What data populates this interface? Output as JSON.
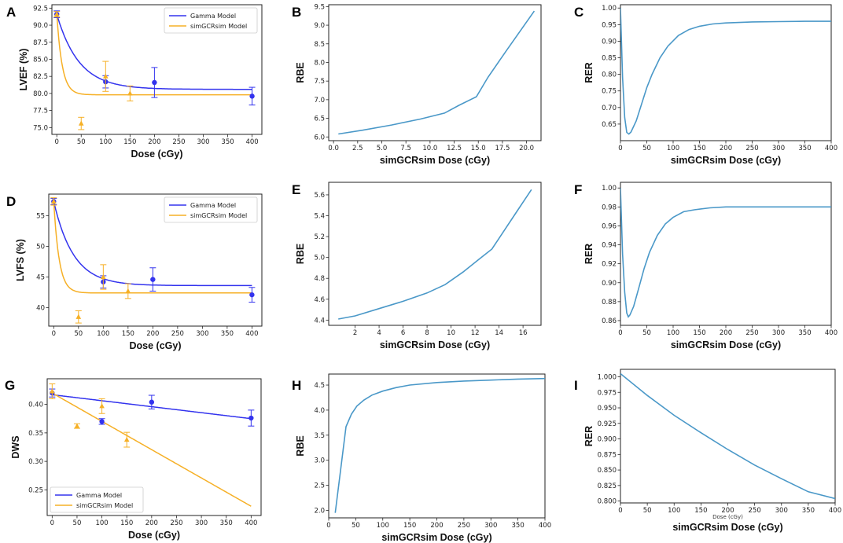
{
  "colors": {
    "gamma": "#3333ee",
    "sim": "#f6b026",
    "rbe": "#4a98c8",
    "axis": "#222222"
  },
  "chart_data": [
    {
      "panel": "A",
      "type": "scatter_fit",
      "xlabel": "Dose (cGy)",
      "ylabel": "LVEF (%)",
      "xlim": [
        -10,
        420
      ],
      "ylim": [
        74,
        93
      ],
      "xticks": [
        0,
        50,
        100,
        150,
        200,
        250,
        300,
        350,
        400
      ],
      "yticks": [
        75.0,
        77.5,
        80.0,
        82.5,
        85.0,
        87.5,
        90.0,
        92.5
      ],
      "ytick_decimals": 1,
      "legend": {
        "position": "top-right",
        "entries": [
          "Gamma Model",
          "simGCRsim Model"
        ]
      },
      "series": [
        {
          "name": "Gamma Model",
          "kind": "exp",
          "y0": 91.6,
          "yinf": 80.6,
          "k": 0.022,
          "points": [
            {
              "x": 0,
              "y": 91.6,
              "err": 0.5
            },
            {
              "x": 100,
              "y": 81.7,
              "err": 0.9
            },
            {
              "x": 200,
              "y": 81.6,
              "err": 2.2
            },
            {
              "x": 400,
              "y": 79.6,
              "err": 1.3
            }
          ]
        },
        {
          "name": "simGCRsim Model",
          "kind": "exp",
          "y0": 91.6,
          "yinf": 79.8,
          "k": 0.09,
          "points": [
            {
              "x": 0,
              "y": 91.6,
              "err": 0.4
            },
            {
              "x": 50,
              "y": 75.6,
              "err": 0.9
            },
            {
              "x": 100,
              "y": 82.5,
              "err": 2.2
            },
            {
              "x": 150,
              "y": 80.0,
              "err": 1.1
            }
          ]
        }
      ]
    },
    {
      "panel": "B",
      "type": "line",
      "xlabel": "simGCRsim Dose (cGy)",
      "ylabel": "RBE",
      "xlim": [
        -0.5,
        21.5
      ],
      "ylim": [
        5.9,
        9.55
      ],
      "xticks": [
        0.0,
        2.5,
        5.0,
        7.5,
        10.0,
        12.5,
        15.0,
        17.5,
        20.0
      ],
      "xtick_decimals": 1,
      "yticks": [
        6.0,
        6.5,
        7.0,
        7.5,
        8.0,
        8.5,
        9.0,
        9.5
      ],
      "ytick_decimals": 1,
      "series": [
        {
          "name": "RBE",
          "x": [
            0.5,
            3,
            6,
            9,
            11.5,
            13,
            14.8,
            16,
            18,
            20.8
          ],
          "y": [
            6.08,
            6.18,
            6.32,
            6.48,
            6.64,
            6.85,
            7.08,
            7.6,
            8.35,
            9.38
          ]
        }
      ]
    },
    {
      "panel": "C",
      "type": "line",
      "xlabel": "simGCRsim Dose (cGy)",
      "ylabel": "RER",
      "xlim": [
        0,
        400
      ],
      "ylim": [
        0.6,
        1.01
      ],
      "xticks": [
        0,
        50,
        100,
        150,
        200,
        250,
        300,
        350,
        400
      ],
      "yticks": [
        0.65,
        0.7,
        0.75,
        0.8,
        0.85,
        0.9,
        0.95,
        1.0
      ],
      "ytick_decimals": 2,
      "series": [
        {
          "name": "RER",
          "x": [
            0,
            4,
            8,
            12,
            16,
            20,
            30,
            40,
            50,
            60,
            75,
            90,
            110,
            130,
            150,
            175,
            200,
            250,
            300,
            350,
            400
          ],
          "y": [
            1.0,
            0.79,
            0.67,
            0.625,
            0.62,
            0.626,
            0.66,
            0.71,
            0.76,
            0.8,
            0.85,
            0.885,
            0.917,
            0.935,
            0.945,
            0.952,
            0.955,
            0.958,
            0.959,
            0.96,
            0.96
          ]
        }
      ]
    },
    {
      "panel": "D",
      "type": "scatter_fit",
      "xlabel": "Dose (cGy)",
      "ylabel": "LVFS (%)",
      "xlim": [
        -10,
        420
      ],
      "ylim": [
        37,
        58.5
      ],
      "xticks": [
        0,
        50,
        100,
        150,
        200,
        250,
        300,
        350,
        400
      ],
      "yticks": [
        40,
        45,
        50,
        55
      ],
      "ytick_decimals": 0,
      "legend": {
        "position": "top-right",
        "entries": [
          "Gamma Model",
          "simGCRsim Model"
        ]
      },
      "series": [
        {
          "name": "Gamma Model",
          "kind": "exp",
          "y0": 57.3,
          "yinf": 43.6,
          "k": 0.025,
          "points": [
            {
              "x": 0,
              "y": 57.3,
              "err": 0.5
            },
            {
              "x": 100,
              "y": 44.2,
              "err": 1.0
            },
            {
              "x": 200,
              "y": 44.6,
              "err": 1.9
            },
            {
              "x": 400,
              "y": 42.1,
              "err": 1.2
            }
          ]
        },
        {
          "name": "simGCRsim Model",
          "kind": "exp",
          "y0": 57.3,
          "yinf": 42.4,
          "k": 0.09,
          "points": [
            {
              "x": 0,
              "y": 57.3,
              "err": 0.6
            },
            {
              "x": 50,
              "y": 38.5,
              "err": 1.0
            },
            {
              "x": 100,
              "y": 45.0,
              "err": 2.0
            },
            {
              "x": 150,
              "y": 42.7,
              "err": 1.2
            }
          ]
        }
      ]
    },
    {
      "panel": "E",
      "type": "line",
      "xlabel": "simGCRsim Dose (cGy)",
      "ylabel": "RBE",
      "xlim": [
        -0.2,
        17.5
      ],
      "ylim": [
        4.35,
        5.72
      ],
      "xticks": [
        2,
        4,
        6,
        8,
        10,
        12,
        14,
        16
      ],
      "xtick_decimals": 0,
      "yticks": [
        4.4,
        4.6,
        4.8,
        5.0,
        5.2,
        5.4,
        5.6
      ],
      "ytick_decimals": 1,
      "series": [
        {
          "name": "RBE",
          "x": [
            0.6,
            2,
            4,
            6,
            8,
            9.5,
            11,
            12.3,
            13.4,
            14.5,
            15.6,
            16.7
          ],
          "y": [
            4.41,
            4.44,
            4.51,
            4.58,
            4.66,
            4.74,
            4.86,
            4.98,
            5.08,
            5.27,
            5.46,
            5.65
          ]
        }
      ]
    },
    {
      "panel": "F",
      "type": "line",
      "xlabel": "simGCRsim Dose (cGy)",
      "ylabel": "RER",
      "xlim": [
        0,
        400
      ],
      "ylim": [
        0.855,
        1.006
      ],
      "xticks": [
        0,
        50,
        100,
        150,
        200,
        250,
        300,
        350,
        400
      ],
      "yticks": [
        0.86,
        0.88,
        0.9,
        0.92,
        0.94,
        0.96,
        0.98,
        1.0
      ],
      "ytick_decimals": 2,
      "series": [
        {
          "name": "RER",
          "x": [
            0,
            4,
            8,
            12,
            15,
            18,
            25,
            35,
            45,
            55,
            70,
            85,
            100,
            120,
            140,
            170,
            200,
            250,
            300,
            350,
            400
          ],
          "y": [
            1.0,
            0.93,
            0.89,
            0.868,
            0.864,
            0.866,
            0.875,
            0.895,
            0.915,
            0.932,
            0.95,
            0.962,
            0.969,
            0.975,
            0.977,
            0.979,
            0.98,
            0.98,
            0.98,
            0.98,
            0.98
          ]
        }
      ]
    },
    {
      "panel": "G",
      "type": "scatter_fit",
      "xlabel": "Dose (cGy)",
      "ylabel": "DWS",
      "xlim": [
        -10,
        420
      ],
      "ylim": [
        0.205,
        0.445
      ],
      "xticks": [
        0,
        50,
        100,
        150,
        200,
        250,
        300,
        350,
        400
      ],
      "yticks": [
        0.25,
        0.3,
        0.35,
        0.4
      ],
      "ytick_decimals": 2,
      "legend": {
        "position": "bottom-left",
        "entries": [
          "Gamma Model",
          "simGCRsim Model"
        ]
      },
      "series": [
        {
          "name": "Gamma Model",
          "kind": "linear",
          "y0": 0.417,
          "slope": -0.000105,
          "points": [
            {
              "x": 0,
              "y": 0.42,
              "err": 0.007
            },
            {
              "x": 100,
              "y": 0.37,
              "err": 0.005
            },
            {
              "x": 200,
              "y": 0.404,
              "err": 0.012
            },
            {
              "x": 400,
              "y": 0.376,
              "err": 0.014
            }
          ]
        },
        {
          "name": "simGCRsim Model",
          "kind": "linear",
          "y0": 0.42,
          "slope": -0.000497,
          "points": [
            {
              "x": 0,
              "y": 0.423,
              "err": 0.013
            },
            {
              "x": 50,
              "y": 0.362,
              "err": 0.004
            },
            {
              "x": 100,
              "y": 0.397,
              "err": 0.013
            },
            {
              "x": 150,
              "y": 0.338,
              "err": 0.013
            }
          ]
        }
      ]
    },
    {
      "panel": "H",
      "type": "line",
      "xlabel": "simGCRsim Dose (cGy)",
      "ylabel": "RBE",
      "xlim": [
        0,
        400
      ],
      "ylim": [
        1.85,
        4.72
      ],
      "xticks": [
        0,
        50,
        100,
        150,
        200,
        250,
        300,
        350,
        400
      ],
      "yticks": [
        2.0,
        2.5,
        3.0,
        3.5,
        4.0,
        4.5
      ],
      "ytick_decimals": 1,
      "series": [
        {
          "name": "RBE",
          "x": [
            12,
            22,
            32,
            42,
            52,
            65,
            80,
            100,
            125,
            150,
            200,
            250,
            300,
            350,
            400
          ],
          "y": [
            1.95,
            2.8,
            3.67,
            3.92,
            4.08,
            4.2,
            4.3,
            4.38,
            4.45,
            4.5,
            4.55,
            4.58,
            4.6,
            4.62,
            4.63
          ]
        }
      ]
    },
    {
      "panel": "I",
      "type": "line",
      "xlabel": "simGCRsim Dose (cGy)",
      "inner_xlabel": "Dose (cGy)",
      "ylabel": "RER",
      "xlim": [
        0,
        400
      ],
      "ylim": [
        0.797,
        1.012
      ],
      "xticks": [
        0,
        50,
        100,
        150,
        200,
        250,
        300,
        350,
        400
      ],
      "yticks": [
        0.8,
        0.825,
        0.85,
        0.875,
        0.9,
        0.925,
        0.95,
        0.975,
        1.0
      ],
      "ytick_decimals": 3,
      "series": [
        {
          "name": "RER",
          "x": [
            0,
            50,
            100,
            150,
            200,
            250,
            300,
            350,
            400
          ],
          "y": [
            1.005,
            0.97,
            0.938,
            0.91,
            0.883,
            0.858,
            0.836,
            0.815,
            0.804
          ]
        }
      ]
    }
  ]
}
